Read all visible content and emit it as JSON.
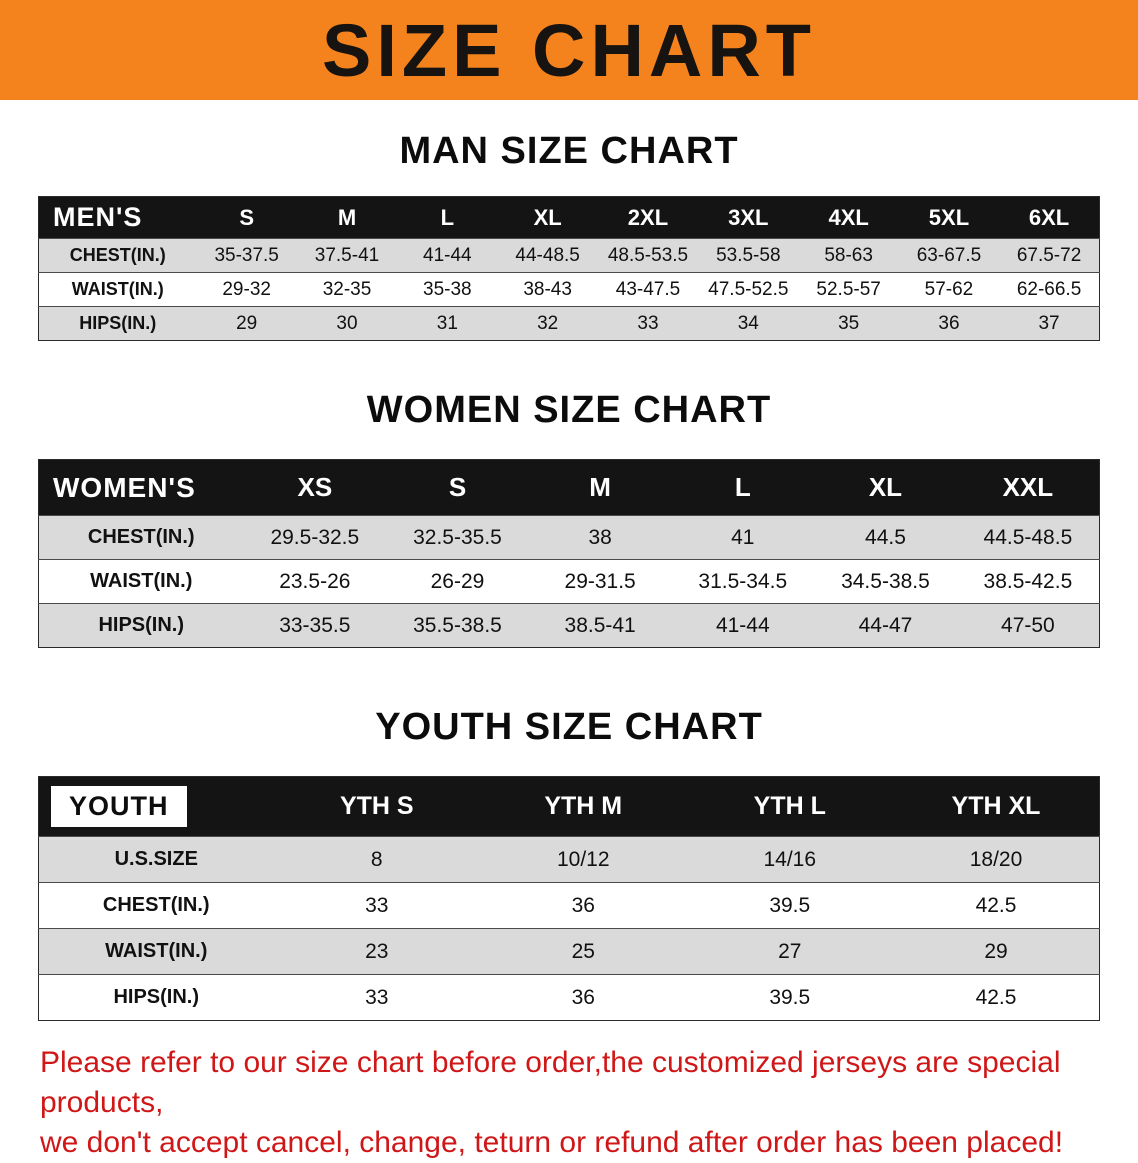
{
  "banner": {
    "title": "SIZE CHART",
    "bg_color": "#f5831d"
  },
  "men": {
    "heading": "MAN SIZE CHART",
    "label": "MEN'S",
    "sizes": [
      "S",
      "M",
      "L",
      "XL",
      "2XL",
      "3XL",
      "4XL",
      "5XL",
      "6XL"
    ],
    "rows": [
      {
        "label": "CHEST(IN.)",
        "values": [
          "35-37.5",
          "37.5-41",
          "41-44",
          "44-48.5",
          "48.5-53.5",
          "53.5-58",
          "58-63",
          "63-67.5",
          "67.5-72"
        ]
      },
      {
        "label": "WAIST(IN.)",
        "values": [
          "29-32",
          "32-35",
          "35-38",
          "38-43",
          "43-47.5",
          "47.5-52.5",
          "52.5-57",
          "57-62",
          "62-66.5"
        ]
      },
      {
        "label": "HIPS(IN.)",
        "values": [
          "29",
          "30",
          "31",
          "32",
          "33",
          "34",
          "35",
          "36",
          "37"
        ]
      }
    ]
  },
  "women": {
    "heading": "WOMEN SIZE CHART",
    "label": "WOMEN'S",
    "sizes": [
      "XS",
      "S",
      "M",
      "L",
      "XL",
      "XXL"
    ],
    "rows": [
      {
        "label": "CHEST(IN.)",
        "values": [
          "29.5-32.5",
          "32.5-35.5",
          "38",
          "41",
          "44.5",
          "44.5-48.5"
        ]
      },
      {
        "label": "WAIST(IN.)",
        "values": [
          "23.5-26",
          "26-29",
          "29-31.5",
          "31.5-34.5",
          "34.5-38.5",
          "38.5-42.5"
        ]
      },
      {
        "label": "HIPS(IN.)",
        "values": [
          "33-35.5",
          "35.5-38.5",
          "38.5-41",
          "41-44",
          "44-47",
          "47-50"
        ]
      }
    ]
  },
  "youth": {
    "heading": "YOUTH SIZE CHART",
    "label": "YOUTH",
    "sizes": [
      "YTH S",
      "YTH M",
      "YTH L",
      "YTH XL"
    ],
    "rows": [
      {
        "label": "U.S.SIZE",
        "values": [
          "8",
          "10/12",
          "14/16",
          "18/20"
        ]
      },
      {
        "label": "CHEST(IN.)",
        "values": [
          "33",
          "36",
          "39.5",
          "42.5"
        ]
      },
      {
        "label": "WAIST(IN.)",
        "values": [
          "23",
          "25",
          "27",
          "29"
        ]
      },
      {
        "label": "HIPS(IN.)",
        "values": [
          "33",
          "36",
          "39.5",
          "42.5"
        ]
      }
    ]
  },
  "footer": {
    "line1": "Please refer to our size chart before order,the customized jerseys are special products,",
    "line2": "we don't accept cancel, change, teturn or refund after order has been placed!"
  }
}
